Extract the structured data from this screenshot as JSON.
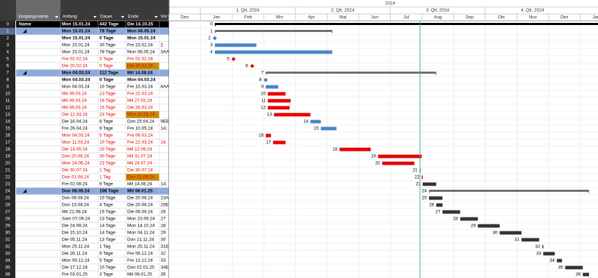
{
  "timeline": {
    "year": "2024",
    "quarters": [
      "1. Qtl, 2024",
      "2. Qtl, 2024",
      "3. Qtl, 2024",
      "4. Qtl, 2024"
    ],
    "months": [
      "Dez",
      "Jan",
      "Feb",
      "Mrz",
      "Apr",
      "Mai",
      "Jun",
      "Jul",
      "Aug",
      "Sep",
      "Okt",
      "Nov",
      "Dez",
      "Jan"
    ]
  },
  "columns": {
    "name": "Vorgangsname",
    "start": "Anfang",
    "duration": "Dauer",
    "end": "Ende",
    "pred": "Vor"
  },
  "rows": [
    {
      "id": "0",
      "name": "Name",
      "start": "Mon 15.01.24",
      "duration": "442 Tage",
      "end": "Die 14.10.25",
      "kind": "summary",
      "bar_color": "#000000",
      "style": "top"
    },
    {
      "id": "1",
      "name": "◢",
      "start": "Mon 15.01.24",
      "duration": "78 Tage",
      "end": "Mon 06.05.24",
      "kind": "summary",
      "bar_color": "#6d6d6d",
      "style": "group"
    },
    {
      "id": "2",
      "start": "Mon 15.01.24",
      "duration": "0 Tage",
      "end": "Mon 15.01.24",
      "kind": "milestone",
      "bar_color": "#3f7dc8",
      "style": "bold"
    },
    {
      "id": "3",
      "start": "Mon 15.01.24",
      "duration": "30 Tage",
      "end": "Fre 23.02.24",
      "pred": "2",
      "kind": "task",
      "bar_color": "#4a84c6"
    },
    {
      "id": "4",
      "start": "Mon 15.01.24",
      "duration": "78 Tage",
      "end": "Mon 06.05.24",
      "pred": "3AA",
      "kind": "task",
      "bar_color": "#4a84c6"
    },
    {
      "id": "5",
      "start": "Fre 02.02.24",
      "duration": "0 Tage",
      "end": "Fre 02.02.24",
      "kind": "milestone",
      "bar_color": "#e60000",
      "style": "red"
    },
    {
      "id": "6",
      "start": "Die 20.02.24",
      "duration": "0 Tage",
      "end": "Die 20.02.24",
      "kind": "milestone",
      "bar_color": "#e60000",
      "style": "red",
      "late": true
    },
    {
      "id": "7",
      "name": "◢",
      "start": "Mon 04.03.24",
      "duration": "112 Tage",
      "end": "Mit 14.08.24",
      "kind": "summary",
      "bar_color": "#6d6d6d",
      "style": "group"
    },
    {
      "id": "8",
      "start": "Mon 04.03.24",
      "duration": "0 Tage",
      "end": "Mon 04.03.24",
      "kind": "milestone",
      "bar_color": "#3f7dc8",
      "style": "bold"
    },
    {
      "id": "9",
      "start": "Mon 04.03.24",
      "duration": "10 Tage",
      "end": "Fre 15.03.24",
      "pred": "8AA",
      "kind": "task",
      "bar_color": "#4a84c6"
    },
    {
      "id": "10",
      "start": "Mit 06.03.24",
      "duration": "13 Tage",
      "end": "Fre 22.03.24",
      "kind": "task",
      "bar_color": "#e60000",
      "style": "red"
    },
    {
      "id": "11",
      "start": "Mit 06.03.24",
      "duration": "16 Tage",
      "end": "Mit 27.03.24",
      "kind": "task",
      "bar_color": "#e60000",
      "style": "red"
    },
    {
      "id": "12",
      "start": "Mit 06.03.24",
      "duration": "15 Tage",
      "end": "Die 26.03.24",
      "kind": "task",
      "bar_color": "#e60000",
      "style": "red"
    },
    {
      "id": "13",
      "start": "Die 12.03.24",
      "duration": "23 Tage",
      "end": "Mon 15.04.24",
      "kind": "task",
      "bar_color": "#e60000",
      "style": "red",
      "late": true
    },
    {
      "id": "14",
      "start": "Die 16.04.24",
      "duration": "8 Tage",
      "end": "Don 25.04.24",
      "pred": "9EE",
      "kind": "task",
      "bar_color": "#4a84c6"
    },
    {
      "id": "15",
      "start": "Fre 26.04.24",
      "duration": "9 Tage",
      "end": "Fre 10.05.24",
      "pred": "14;",
      "kind": "task",
      "bar_color": "#4a84c6"
    },
    {
      "id": "16",
      "start": "Mon 04.03.24",
      "duration": "5 Tage",
      "end": "Fre 08.03.24",
      "kind": "task",
      "bar_color": "#e60000",
      "style": "red"
    },
    {
      "id": "17",
      "start": "Mon 11.03.24",
      "duration": "10 Tage",
      "end": "Fre 22.03.24",
      "pred": "16",
      "kind": "task",
      "bar_color": "#e60000",
      "style": "red"
    },
    {
      "id": "18",
      "start": "Die 14.05.24",
      "duration": "20 Tage",
      "end": "Mit 12.06.24",
      "kind": "task",
      "bar_color": "#e60000",
      "style": "red"
    },
    {
      "id": "19",
      "start": "Don 20.06.24",
      "duration": "30 Tage",
      "end": "Mit 31.07.24",
      "kind": "task",
      "bar_color": "#e60000",
      "style": "red"
    },
    {
      "id": "20",
      "start": "Mon 24.06.24",
      "duration": "23 Tage",
      "end": "Mit 24.07.24",
      "kind": "task",
      "bar_color": "#e60000",
      "style": "red"
    },
    {
      "id": "21",
      "start": "Die 30.07.24",
      "duration": "1 Tag",
      "end": "Die 30.07.24",
      "kind": "task",
      "bar_color": "#e60000",
      "style": "red"
    },
    {
      "id": "22",
      "start": "Don 01.08.24",
      "duration": "1 Tag",
      "end": "Don 01.08.24",
      "kind": "task",
      "bar_color": "#e60000",
      "style": "red",
      "late": true
    },
    {
      "id": "23",
      "start": "Fre 02.08.24",
      "duration": "9 Tage",
      "end": "Mit 14.08.24",
      "pred": "14;",
      "kind": "task",
      "bar_color": "#333333"
    },
    {
      "id": "24",
      "name": "◢",
      "start": "Don 08.08.24",
      "duration": "108 Tage",
      "end": "Mit 08.01.25",
      "kind": "summary",
      "bar_color": "#6d6d6d",
      "style": "group"
    },
    {
      "id": "25",
      "start": "Don 08.08.24",
      "duration": "10 Tage",
      "end": "Die 20.08.24",
      "pred": "23A",
      "kind": "task",
      "bar_color": "#333333"
    },
    {
      "id": "26",
      "start": "Don 15.08.24",
      "duration": "4 Tage",
      "end": "Die 20.08.24",
      "pred": "25E",
      "kind": "task",
      "bar_color": "#333333"
    },
    {
      "id": "27",
      "start": "Mit 21.08.24",
      "duration": "15 Tage",
      "end": "Die 06.09.24",
      "pred": "26",
      "kind": "task",
      "bar_color": "#333333"
    },
    {
      "id": "28",
      "start": "Sam 07.09.24",
      "duration": "13 Tage",
      "end": "Mon 23.09.24",
      "pred": "27",
      "kind": "task",
      "bar_color": "#333333"
    },
    {
      "id": "29",
      "start": "Die 24.09.24",
      "duration": "14 Tage",
      "end": "Mon 14.10.24",
      "pred": "28",
      "kind": "task",
      "bar_color": "#333333"
    },
    {
      "id": "30",
      "start": "Die 15.10.24",
      "duration": "14 Tage",
      "end": "Mon 04.11.24",
      "pred": "29",
      "kind": "task",
      "bar_color": "#333333"
    },
    {
      "id": "31",
      "start": "Die 05.11.24",
      "duration": "13 Tage",
      "end": "Don 21.11.24",
      "pred": "30",
      "kind": "task",
      "bar_color": "#333333"
    },
    {
      "id": "32",
      "start": "Mon 25.11.24",
      "duration": "1 Tag",
      "end": "Mon 25.11.24",
      "pred": "31E",
      "kind": "task",
      "bar_color": "#333333"
    },
    {
      "id": "33",
      "start": "Die 26.11.24",
      "duration": "9 Tage",
      "end": "Fre 06.12.24",
      "pred": "32",
      "kind": "task",
      "bar_color": "#333333"
    },
    {
      "id": "34",
      "start": "Mon 09.12.24",
      "duration": "5 Tage",
      "end": "Fre 13.12.24",
      "pred": "33",
      "kind": "task",
      "bar_color": "#333333"
    },
    {
      "id": "35",
      "start": "Die 17.12.24",
      "duration": "10 Tage",
      "end": "Don 02.01.25",
      "pred": "34E",
      "kind": "task",
      "bar_color": "#333333"
    },
    {
      "id": "36",
      "start": "Fre 03.01.25",
      "duration": "3 Tage",
      "end": "Mit 08.01.25",
      "pred": "35",
      "kind": "task",
      "bar_color": "#333333"
    }
  ]
}
